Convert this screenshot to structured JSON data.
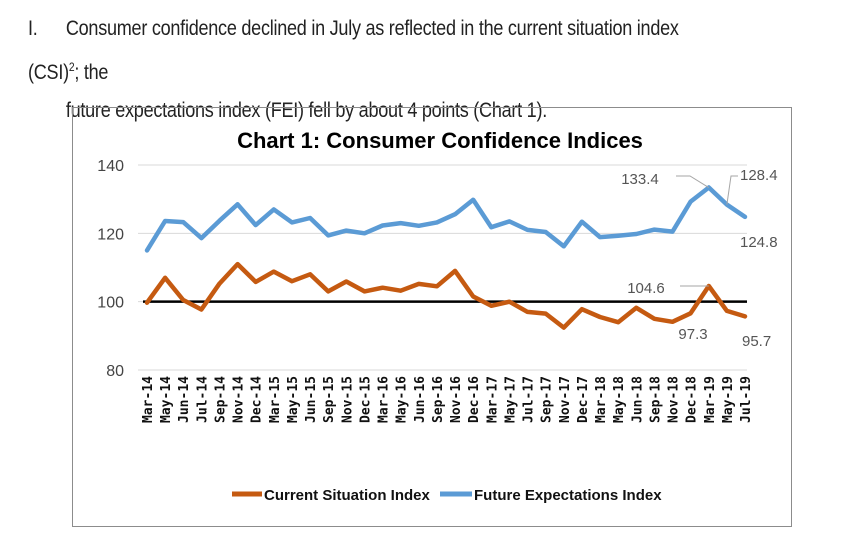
{
  "text": {
    "item_number": "I.",
    "line1_a": "Consumer confidence declined in July as reflected in the current situation index (CSI)",
    "footnote_marker": "2",
    "line1_b": "; the",
    "line2": "future expectations index (FEI) fell by about 4 points (Chart 1)."
  },
  "colors": {
    "csi": "#c55a11",
    "fei": "#5b9bd5",
    "reference_line": "#000000",
    "grid": "#d9d9d9"
  },
  "chart_data": {
    "type": "line",
    "title": "Chart 1: Consumer Confidence Indices",
    "xlabel": "",
    "ylabel": "",
    "ylim": [
      80,
      140
    ],
    "yticks": [
      80,
      100,
      120,
      140
    ],
    "grid": true,
    "legend_position": "bottom",
    "reference_line": 100,
    "categories": [
      "Mar-14",
      "May-14",
      "Jun-14",
      "Jul-14",
      "Sep-14",
      "Nov-14",
      "Dec-14",
      "Mar-15",
      "May-15",
      "Jun-15",
      "Sep-15",
      "Nov-15",
      "Dec-15",
      "Mar-16",
      "May-16",
      "Jun-16",
      "Sep-16",
      "Nov-16",
      "Dec-16",
      "Mar-17",
      "May-17",
      "Jul-17",
      "Sep-17",
      "Nov-17",
      "Dec-17",
      "Mar-18",
      "May-18",
      "Jun-18",
      "Sep-18",
      "Nov-18",
      "Dec-18",
      "Mar-19",
      "May-19",
      "Jul-19"
    ],
    "series": [
      {
        "name": "Current Situation Index",
        "color": "#c55a11",
        "values": [
          99.7,
          107,
          100.5,
          97.7,
          105.3,
          111,
          105.8,
          108.8,
          106,
          108,
          103,
          105.9,
          103,
          104.1,
          103.2,
          105.2,
          104.5,
          109,
          101.5,
          98.8,
          100,
          97,
          96.5,
          92.4,
          97.8,
          95.5,
          94,
          98.2,
          95,
          94.1,
          96.6,
          104.6,
          97.3,
          95.7
        ]
      },
      {
        "name": "Future Expectations Index",
        "color": "#5b9bd5",
        "values": [
          115,
          123.6,
          123.3,
          118.6,
          123.7,
          128.5,
          122.4,
          127,
          123.2,
          124.5,
          119.4,
          120.8,
          120,
          122.3,
          123,
          122.2,
          123.2,
          125.6,
          129.8,
          121.8,
          123.5,
          121,
          120.4,
          116.2,
          123.4,
          118.9,
          119.3,
          119.8,
          121.1,
          120.5,
          129.3,
          133.4,
          128.4,
          124.8
        ]
      }
    ],
    "annotations": [
      {
        "series": 1,
        "index": 31,
        "text": "133.4"
      },
      {
        "series": 1,
        "index": 32,
        "text": "128.4"
      },
      {
        "series": 1,
        "index": 33,
        "text": "124.8"
      },
      {
        "series": 0,
        "index": 31,
        "text": "104.6"
      },
      {
        "series": 0,
        "index": 32,
        "text": "97.3"
      },
      {
        "series": 0,
        "index": 33,
        "text": "95.7"
      }
    ]
  }
}
